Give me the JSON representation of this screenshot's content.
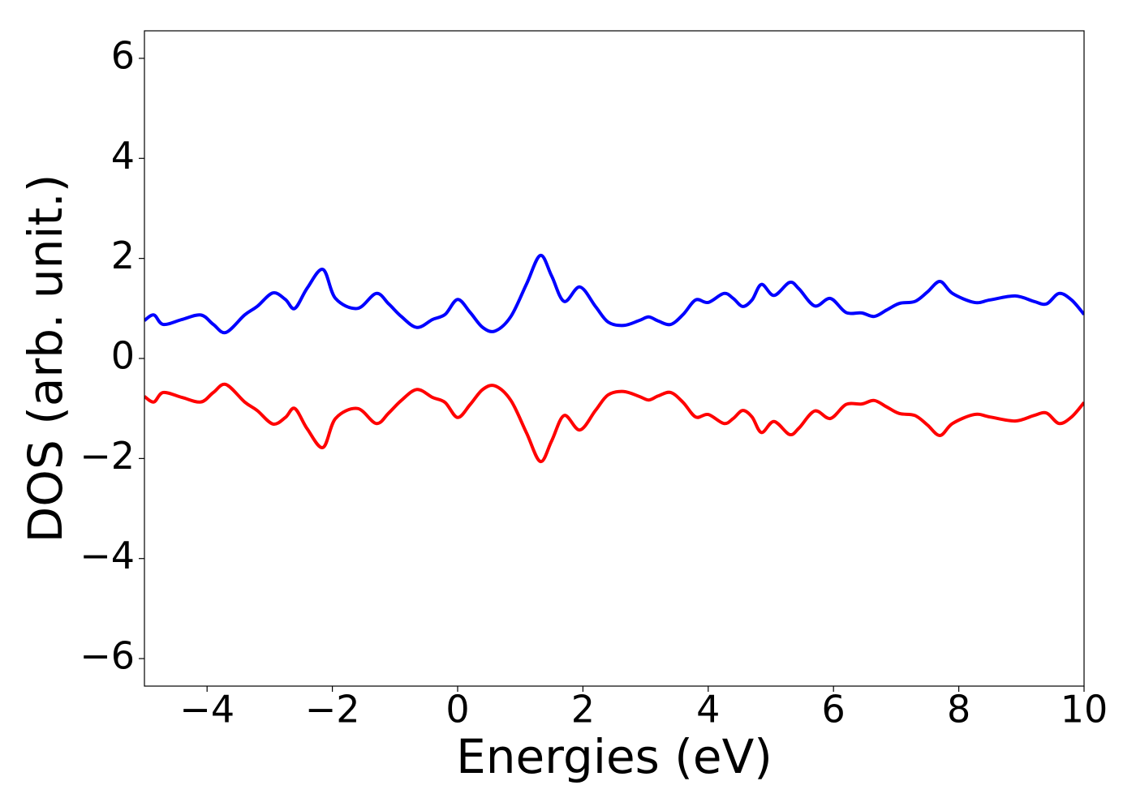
{
  "chart_data": {
    "type": "line",
    "xlabel": "Energies (eV)",
    "ylabel": "DOS (arb. unit.)",
    "x": [
      -5,
      -4.85,
      -4.7,
      -4.4,
      -4.1,
      -3.9,
      -3.7,
      -3.4,
      -3.2,
      -2.95,
      -2.75,
      -2.6,
      -2.4,
      -2.15,
      -1.95,
      -1.6,
      -1.3,
      -1.1,
      -0.9,
      -0.65,
      -0.4,
      -0.2,
      0,
      0.2,
      0.4,
      0.6,
      0.85,
      1.1,
      1.32,
      1.5,
      1.7,
      1.95,
      2.2,
      2.4,
      2.65,
      2.9,
      3.05,
      3.2,
      3.4,
      3.6,
      3.8,
      4,
      4.25,
      4.4,
      4.55,
      4.7,
      4.85,
      5.05,
      5.3,
      5.45,
      5.7,
      5.95,
      6.2,
      6.45,
      6.65,
      6.85,
      7.05,
      7.3,
      7.5,
      7.7,
      7.9,
      8.25,
      8.5,
      8.9,
      9.2,
      9.4,
      9.6,
      9.8,
      10
    ],
    "series": [
      {
        "color": "#0000ff",
        "values": [
          0.76,
          0.87,
          0.68,
          0.78,
          0.87,
          0.68,
          0.52,
          0.87,
          1.04,
          1.31,
          1.18,
          1.0,
          1.41,
          1.78,
          1.2,
          1.0,
          1.3,
          1.09,
          0.84,
          0.62,
          0.78,
          0.88,
          1.18,
          0.92,
          0.62,
          0.55,
          0.84,
          1.49,
          2.06,
          1.65,
          1.14,
          1.43,
          1.04,
          0.73,
          0.66,
          0.76,
          0.83,
          0.75,
          0.68,
          0.88,
          1.17,
          1.12,
          1.3,
          1.2,
          1.04,
          1.17,
          1.48,
          1.26,
          1.52,
          1.39,
          1.05,
          1.2,
          0.92,
          0.91,
          0.84,
          0.97,
          1.1,
          1.14,
          1.33,
          1.54,
          1.3,
          1.12,
          1.17,
          1.25,
          1.14,
          1.09,
          1.3,
          1.17,
          0.88
        ]
      },
      {
        "color": "#ff0000",
        "values": [
          -0.76,
          -0.87,
          -0.68,
          -0.78,
          -0.87,
          -0.68,
          -0.52,
          -0.87,
          -1.04,
          -1.31,
          -1.18,
          -1.0,
          -1.41,
          -1.78,
          -1.2,
          -1.0,
          -1.3,
          -1.09,
          -0.84,
          -0.62,
          -0.78,
          -0.88,
          -1.18,
          -0.92,
          -0.62,
          -0.55,
          -0.84,
          -1.49,
          -2.06,
          -1.65,
          -1.14,
          -1.43,
          -1.04,
          -0.73,
          -0.66,
          -0.76,
          -0.83,
          -0.75,
          -0.68,
          -0.88,
          -1.17,
          -1.12,
          -1.3,
          -1.2,
          -1.04,
          -1.17,
          -1.48,
          -1.26,
          -1.52,
          -1.39,
          -1.05,
          -1.2,
          -0.92,
          -0.91,
          -0.84,
          -0.97,
          -1.1,
          -1.14,
          -1.33,
          -1.54,
          -1.3,
          -1.12,
          -1.17,
          -1.25,
          -1.14,
          -1.09,
          -1.3,
          -1.17,
          -0.88
        ]
      }
    ],
    "xlim": [
      -5,
      10
    ],
    "xticks": [
      {
        "value": -4,
        "label": "−4"
      },
      {
        "value": -2,
        "label": "−2"
      },
      0,
      2,
      4,
      6,
      8,
      10
    ],
    "ylim": [
      -6.55,
      6.55
    ],
    "yticks": [
      {
        "value": -6,
        "label": "−6"
      },
      {
        "value": -4,
        "label": "−4"
      },
      {
        "value": -2,
        "label": "−2"
      },
      0,
      2,
      4,
      6
    ],
    "grid": false
  }
}
